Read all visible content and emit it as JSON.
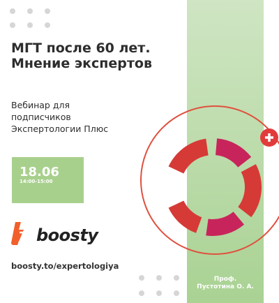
{
  "header": {
    "title": "МГТ после 60 лет. Мнение экспертов",
    "subtitle": "Вебинар для подписчиков Экспертологии Плюс"
  },
  "event": {
    "date": "18.06",
    "time": "14:00-15:00"
  },
  "brand": {
    "name": "boosty",
    "url": "boosty.to/expertologiya"
  },
  "speaker": {
    "title": "Проф.",
    "name": "Пустотина О. А."
  }
}
